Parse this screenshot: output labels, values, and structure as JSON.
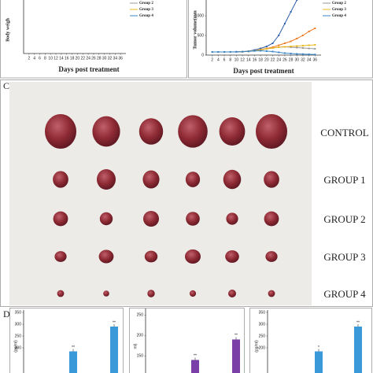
{
  "panel_labels": [
    "C",
    "D"
  ],
  "photo": {
    "rows": [
      "CONTROL",
      "GROUP 1",
      "GROUP 2",
      "GROUP 3",
      "GROUP 4"
    ]
  },
  "chart_data": [
    {
      "type": "line",
      "ylabel": "Body weigh",
      "xlabel": "Days post treatment",
      "xlim": [
        0,
        38
      ],
      "xticks": [
        2,
        4,
        6,
        8,
        10,
        12,
        14,
        16,
        18,
        20,
        22,
        24,
        26,
        28,
        30,
        32,
        34,
        36
      ],
      "series": [
        {
          "name": "Group 2",
          "color": "#999999"
        },
        {
          "name": "Group 3",
          "color": "#e8b820"
        },
        {
          "name": "Group 4",
          "color": "#3a86c8"
        }
      ]
    },
    {
      "type": "line",
      "ylabel": "Tumor volume(mm",
      "xlabel": "Days post treatment",
      "x": [
        2,
        4,
        6,
        8,
        10,
        12,
        14,
        16,
        18,
        20,
        22,
        24,
        26,
        28,
        30,
        32,
        34,
        36
      ],
      "xlim": [
        0,
        38
      ],
      "xticks": [
        2,
        4,
        6,
        8,
        10,
        12,
        14,
        16,
        18,
        20,
        22,
        24,
        26,
        28,
        30,
        32,
        34,
        36
      ],
      "ylim": [
        0,
        1400
      ],
      "yticks": [
        0,
        500,
        1000
      ],
      "series": [
        {
          "color": "#2f5fa8",
          "values": [
            80,
            80,
            80,
            80,
            85,
            90,
            100,
            130,
            170,
            220,
            300,
            500,
            800,
            1100,
            1400,
            null,
            null,
            null
          ]
        },
        {
          "color": "#f07a22",
          "values": [
            80,
            80,
            80,
            80,
            80,
            85,
            95,
            110,
            140,
            170,
            200,
            250,
            300,
            350,
            420,
            500,
            600,
            680
          ]
        },
        {
          "name": "Group 2",
          "color": "#999999",
          "values": [
            80,
            80,
            80,
            80,
            80,
            85,
            95,
            110,
            130,
            160,
            180,
            200,
            210,
            200,
            190,
            180,
            170,
            160
          ]
        },
        {
          "name": "Group 3",
          "color": "#e8b820",
          "values": [
            80,
            80,
            80,
            80,
            80,
            85,
            95,
            110,
            130,
            160,
            180,
            200,
            210,
            220,
            230,
            240,
            250,
            260
          ]
        },
        {
          "name": "Group 4",
          "color": "#3a86c8",
          "values": [
            80,
            80,
            80,
            80,
            80,
            85,
            95,
            105,
            110,
            100,
            90,
            70,
            50,
            40,
            30,
            25,
            20,
            15
          ]
        }
      ]
    },
    {
      "type": "bar",
      "ylabel": "(pg/ml)",
      "color": "#3a9ad9",
      "ylim": [
        100,
        350
      ],
      "yticks": [
        200,
        250,
        300,
        350
      ],
      "values": [
        185,
        290
      ],
      "annotations": [
        "**",
        "**"
      ]
    },
    {
      "type": "bar",
      "ylabel": "ml)",
      "color": "#7b3fa8",
      "ylim": [
        110,
        260
      ],
      "yticks": [
        150,
        200,
        250
      ],
      "values": [
        140,
        190
      ],
      "annotations": [
        "**",
        "**"
      ]
    },
    {
      "type": "bar",
      "ylabel": "(pg/ml)",
      "color": "#3a9ad9",
      "ylim": [
        100,
        350
      ],
      "yticks": [
        200,
        250,
        300,
        350
      ],
      "values": [
        185,
        290
      ],
      "annotations": [
        "*",
        "**"
      ]
    }
  ]
}
